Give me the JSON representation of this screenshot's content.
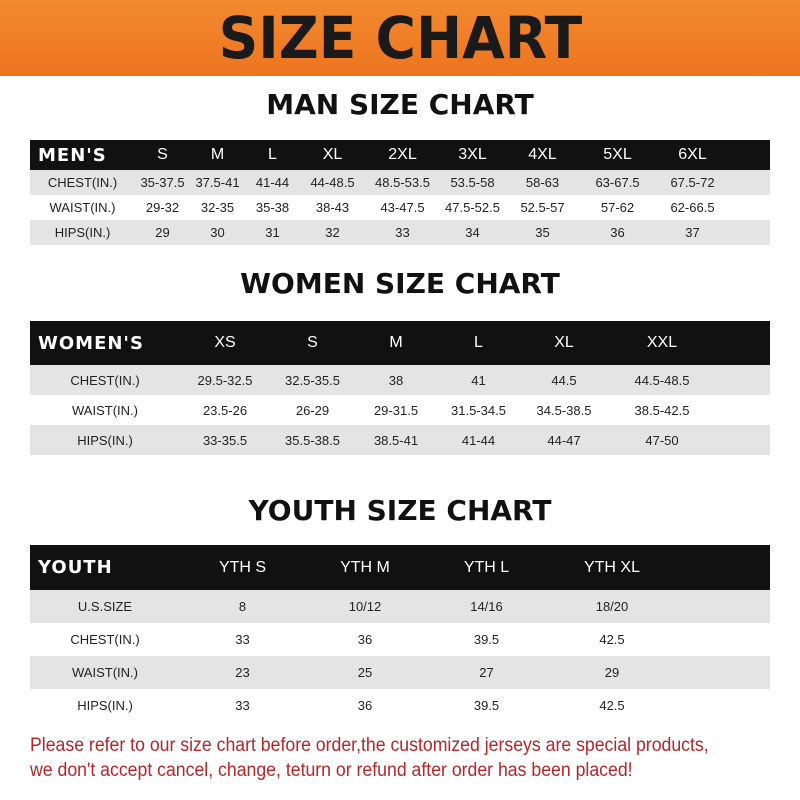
{
  "banner": "SIZE CHART",
  "men": {
    "title": "MAN SIZE CHART",
    "header": "MEN'S",
    "sizes": [
      "S",
      "M",
      "L",
      "XL",
      "2XL",
      "3XL",
      "4XL",
      "5XL",
      "6XL"
    ],
    "rows": [
      {
        "label": "CHEST(IN.)",
        "values": [
          "35-37.5",
          "37.5-41",
          "41-44",
          "44-48.5",
          "48.5-53.5",
          "53.5-58",
          "58-63",
          "63-67.5",
          "67.5-72"
        ]
      },
      {
        "label": "WAIST(IN.)",
        "values": [
          "29-32",
          "32-35",
          "35-38",
          "38-43",
          "43-47.5",
          "47.5-52.5",
          "52.5-57",
          "57-62",
          "62-66.5"
        ]
      },
      {
        "label": "HIPS(IN.)",
        "values": [
          "29",
          "30",
          "31",
          "32",
          "33",
          "34",
          "35",
          "36",
          "37"
        ]
      }
    ]
  },
  "women": {
    "title": "WOMEN SIZE CHART",
    "header": "WOMEN'S",
    "sizes": [
      "XS",
      "S",
      "M",
      "L",
      "XL",
      "XXL"
    ],
    "rows": [
      {
        "label": "CHEST(IN.)",
        "values": [
          "29.5-32.5",
          "32.5-35.5",
          "38",
          "41",
          "44.5",
          "44.5-48.5"
        ]
      },
      {
        "label": "WAIST(IN.)",
        "values": [
          "23.5-26",
          "26-29",
          "29-31.5",
          "31.5-34.5",
          "34.5-38.5",
          "38.5-42.5"
        ]
      },
      {
        "label": "HIPS(IN.)",
        "values": [
          "33-35.5",
          "35.5-38.5",
          "38.5-41",
          "41-44",
          "44-47",
          "47-50"
        ]
      }
    ]
  },
  "youth": {
    "title": "YOUTH SIZE CHART",
    "header": "YOUTH",
    "sizes": [
      "YTH S",
      "YTH M",
      "YTH L",
      "YTH XL"
    ],
    "rows": [
      {
        "label": "U.S.SIZE",
        "values": [
          "8",
          "10/12",
          "14/16",
          "18/20"
        ]
      },
      {
        "label": "CHEST(IN.)",
        "values": [
          "33",
          "36",
          "39.5",
          "42.5"
        ]
      },
      {
        "label": "WAIST(IN.)",
        "values": [
          "23",
          "25",
          "27",
          "29"
        ]
      },
      {
        "label": "HIPS(IN.)",
        "values": [
          "33",
          "36",
          "39.5",
          "42.5"
        ]
      }
    ]
  },
  "note": {
    "line1": "Please refer to our size chart before order,the customized jerseys are special products,",
    "line2": "we don't accept cancel, change, teturn or refund after order has been placed!"
  }
}
